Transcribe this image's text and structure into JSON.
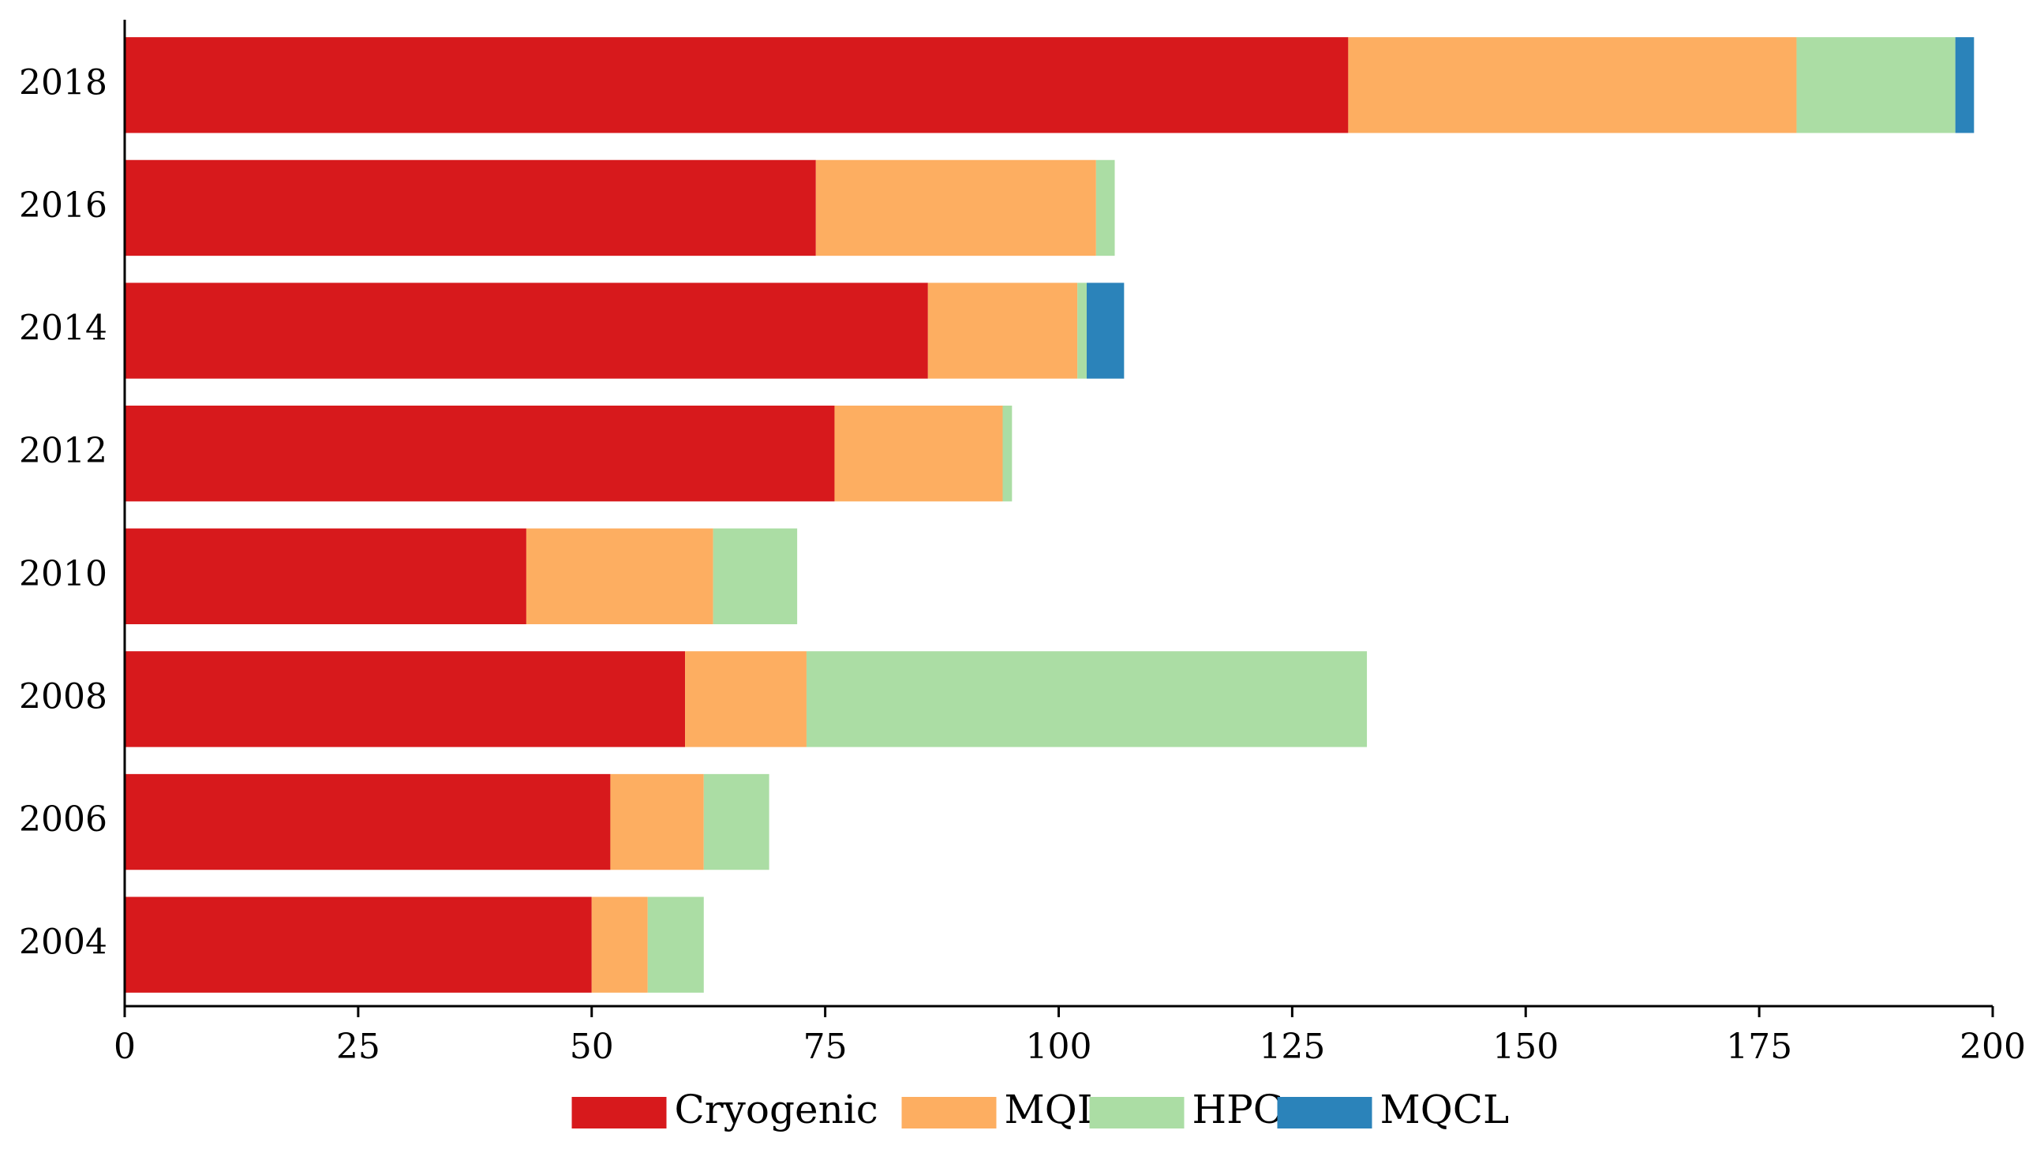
{
  "chart_data": {
    "type": "bar",
    "orientation": "horizontal",
    "stacked": true,
    "title": "",
    "xlabel": "",
    "ylabel": "",
    "xlim": [
      0,
      200
    ],
    "x_ticks": [
      "0",
      "25",
      "50",
      "75",
      "100",
      "125",
      "150",
      "175",
      "200"
    ],
    "categories": [
      "2018",
      "2016",
      "2014",
      "2012",
      "2010",
      "2008",
      "2006",
      "2004"
    ],
    "series": [
      {
        "name": "Cryogenic",
        "color": "#d7191c",
        "values": [
          131,
          74,
          86,
          76,
          43,
          60,
          52,
          50
        ]
      },
      {
        "name": "MQL",
        "color": "#fdae61",
        "values": [
          48,
          30,
          16,
          18,
          20,
          13,
          10,
          6
        ]
      },
      {
        "name": "HPC",
        "color": "#abdda4",
        "values": [
          17,
          2,
          1,
          1,
          9,
          60,
          7,
          6
        ]
      },
      {
        "name": "MQCL",
        "color": "#2b83ba",
        "values": [
          2,
          0,
          4,
          0,
          0,
          0,
          0,
          0
        ]
      }
    ],
    "grid": false,
    "legend_position": "bottom-center"
  }
}
